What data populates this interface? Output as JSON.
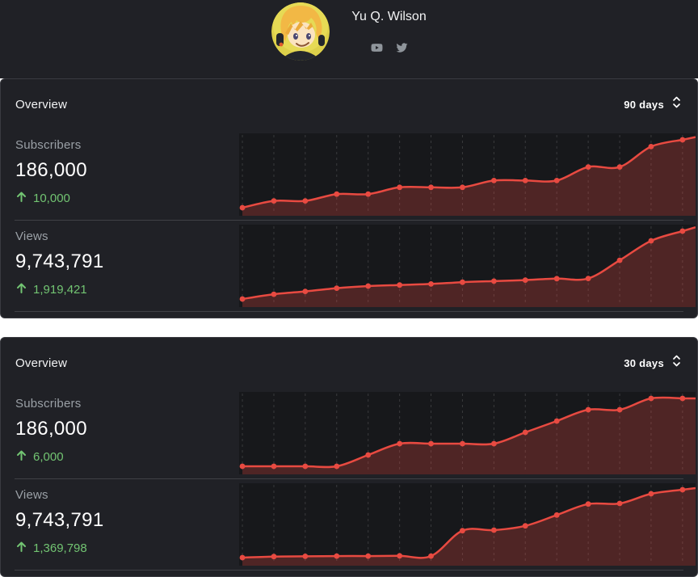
{
  "header": {
    "name": "Yu Q. Wilson",
    "social": [
      {
        "icon": "youtube-icon"
      },
      {
        "icon": "twitter-icon"
      }
    ]
  },
  "panels": [
    {
      "title": "Overview",
      "range_label": "90 days",
      "stats": [
        {
          "label": "Subscribers",
          "value": "186,000",
          "change": "10,000",
          "direction": "up"
        },
        {
          "label": "Views",
          "value": "9,743,791",
          "change": "1,919,421",
          "direction": "up"
        }
      ]
    },
    {
      "title": "Overview",
      "range_label": "30 days",
      "stats": [
        {
          "label": "Subscribers",
          "value": "186,000",
          "change": "6,000",
          "direction": "up"
        },
        {
          "label": "Views",
          "value": "9,743,791",
          "change": "1,369,798",
          "direction": "up"
        }
      ]
    }
  ],
  "colors": {
    "page_bg": "#ffffff",
    "panel_bg": "#202126",
    "chart_bg": "#17181b",
    "panel_border": "#3a3b41",
    "divider": "#3f4045",
    "accent_red": "#e84a41",
    "area_fill": "rgba(232,74,65,0.27)",
    "positive_green": "#72c472",
    "label_gray": "#9aa0a6",
    "text_white": "#f2f3f4",
    "grid_line": "rgba(255,255,255,0.15)"
  },
  "chart_data": [
    {
      "id": "subscribers-90d",
      "type": "line",
      "metric": "Subscribers",
      "range": "90 days",
      "points": 15,
      "values": [
        176000,
        177000,
        177000,
        178000,
        178000,
        179000,
        179000,
        179000,
        180000,
        180000,
        180000,
        182000,
        182000,
        185000,
        186000
      ],
      "ylim": [
        176000,
        186000
      ],
      "axes_visible": false,
      "grid": "vertical-dashed",
      "legend": "none",
      "style": "red smoothed line with point markers and translucent area fill"
    },
    {
      "id": "views-90d",
      "type": "line",
      "metric": "Views",
      "range": "90 days",
      "points": 15,
      "values": [
        7824370,
        7960000,
        8040000,
        8130000,
        8190000,
        8220000,
        8250000,
        8300000,
        8330000,
        8360000,
        8400000,
        8405000,
        8920000,
        9470000,
        9743791
      ],
      "ylim": [
        7824370,
        9743791
      ],
      "axes_visible": false,
      "grid": "vertical-dashed",
      "legend": "none",
      "style": "red smoothed line with point markers and translucent area fill"
    },
    {
      "id": "subscribers-30d",
      "type": "line",
      "metric": "Subscribers",
      "range": "30 days",
      "points": 15,
      "values": [
        180000,
        180000,
        180000,
        180000,
        181000,
        182000,
        182000,
        182000,
        182000,
        183000,
        184000,
        185000,
        185000,
        186000,
        186000
      ],
      "ylim": [
        180000,
        186000
      ],
      "axes_visible": false,
      "grid": "vertical-dashed",
      "legend": "none",
      "style": "red smoothed line with point markers and translucent area fill"
    },
    {
      "id": "views-30d",
      "type": "line",
      "metric": "Views",
      "range": "30 days",
      "points": 15,
      "values": [
        8373993,
        8395000,
        8400000,
        8405000,
        8405000,
        8410000,
        8405000,
        8917000,
        8928000,
        9015000,
        9233000,
        9455000,
        9466000,
        9662000,
        9743791
      ],
      "ylim": [
        8373993,
        9743791
      ],
      "axes_visible": false,
      "grid": "vertical-dashed",
      "legend": "none",
      "style": "red smoothed line with point markers and translucent area fill"
    }
  ]
}
